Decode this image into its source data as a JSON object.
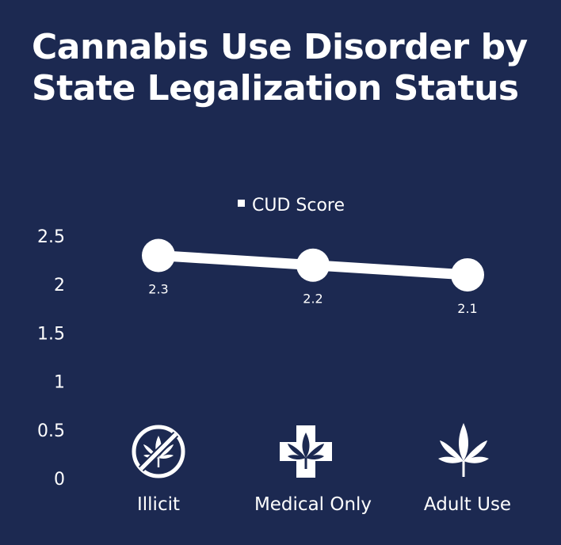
{
  "colors": {
    "background": "#1c2951",
    "foreground": "#ffffff"
  },
  "icons": [
    "prohibited-cannabis-icon",
    "medical-cross-cannabis-icon",
    "cannabis-leaf-icon"
  ],
  "chart_data": {
    "type": "line",
    "title": "Cannabis Use Disorder by State Legalization Status",
    "categories": [
      "Illicit",
      "Medical Only",
      "Adult Use"
    ],
    "series": [
      {
        "name": "CUD Score",
        "values": [
          2.3,
          2.2,
          2.1
        ],
        "labels": [
          "2.3",
          "2.2",
          "2.1"
        ]
      }
    ],
    "ylim": [
      0,
      2.5
    ],
    "yticks": [
      0,
      0.5,
      1,
      1.5,
      2,
      2.5
    ],
    "ytick_labels": [
      "0",
      "0.5",
      "1",
      "1.5",
      "2",
      "2.5"
    ],
    "legend": "top-center",
    "grid": false
  }
}
